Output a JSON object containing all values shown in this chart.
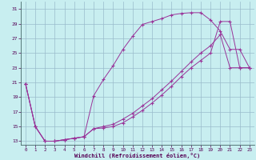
{
  "xlabel": "Windchill (Refroidissement éolien,°C)",
  "bg_color": "#c8eef0",
  "grid_color": "#99bbcc",
  "line_color": "#993399",
  "xlim": [
    -0.5,
    23.5
  ],
  "ylim": [
    12.5,
    32.0
  ],
  "xticks": [
    0,
    1,
    2,
    3,
    4,
    5,
    6,
    7,
    8,
    9,
    10,
    11,
    12,
    13,
    14,
    15,
    16,
    17,
    18,
    19,
    20,
    21,
    22,
    23
  ],
  "yticks": [
    13,
    15,
    17,
    19,
    21,
    23,
    25,
    27,
    29,
    31
  ],
  "curve1_x": [
    0,
    1,
    2,
    3,
    4,
    5,
    6,
    7,
    8,
    9,
    10,
    11,
    12,
    13,
    14,
    15,
    16,
    17,
    18,
    19,
    20,
    21,
    22,
    23
  ],
  "curve1_y": [
    20.8,
    15.0,
    13.0,
    13.0,
    13.2,
    13.4,
    13.6,
    19.2,
    21.4,
    23.3,
    25.5,
    27.3,
    28.9,
    29.3,
    29.7,
    30.2,
    30.4,
    30.5,
    30.5,
    29.5,
    28.0,
    25.5,
    25.5,
    23.0
  ],
  "curve2_x": [
    0,
    1,
    2,
    3,
    4,
    5,
    6,
    7,
    8,
    9,
    10,
    11,
    12,
    13,
    14,
    15,
    16,
    17,
    18,
    19,
    20,
    21,
    22,
    23
  ],
  "curve2_y": [
    20.8,
    15.0,
    13.0,
    13.0,
    13.2,
    13.4,
    13.6,
    14.7,
    14.8,
    15.0,
    15.5,
    16.3,
    17.2,
    18.2,
    19.3,
    20.5,
    21.8,
    23.0,
    24.0,
    25.0,
    29.3,
    29.3,
    23.0,
    23.0
  ],
  "curve3_x": [
    0,
    1,
    2,
    3,
    4,
    5,
    6,
    7,
    8,
    9,
    10,
    11,
    12,
    13,
    14,
    15,
    16,
    17,
    18,
    19,
    20,
    21,
    22,
    23
  ],
  "curve3_y": [
    20.8,
    15.0,
    13.0,
    13.0,
    13.2,
    13.4,
    13.6,
    14.7,
    15.0,
    15.3,
    16.0,
    16.8,
    17.8,
    18.8,
    20.0,
    21.2,
    22.5,
    23.8,
    25.0,
    26.0,
    27.5,
    23.0,
    23.0,
    23.0
  ]
}
